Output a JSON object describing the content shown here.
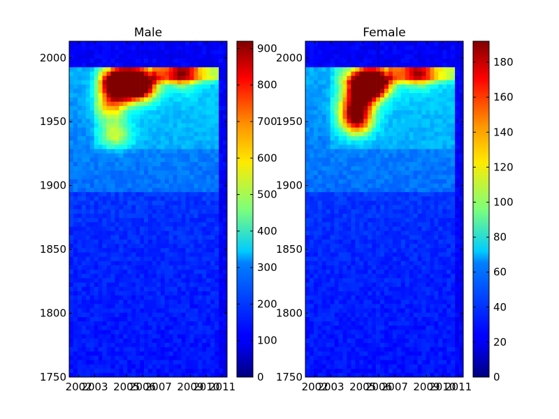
{
  "chart_data": [
    {
      "type": "heatmap",
      "title": "Male",
      "xlabel": "",
      "ylabel": "",
      "xlim": [
        2001.4,
        2011.3
      ],
      "ylim": [
        1750,
        2013
      ],
      "x_ticks": [
        2002,
        2003,
        2005,
        2006,
        2007,
        2009,
        2010,
        2011
      ],
      "x_tick_labels": [
        "2002",
        "2003",
        "2005",
        "2006",
        "2007",
        "2009",
        "2010",
        "2011"
      ],
      "y_ticks": [
        1750,
        1800,
        1850,
        1900,
        1950,
        2000
      ],
      "y_tick_labels": [
        "1750",
        "1800",
        "1850",
        "1900",
        "1950",
        "2000"
      ],
      "colorbar": {
        "min": 0,
        "max": 920,
        "colormap": "jet",
        "ticks": [
          0,
          100,
          200,
          300,
          400,
          500,
          600,
          700,
          800,
          900
        ],
        "tick_labels": [
          "0",
          "100",
          "200",
          "300",
          "400",
          "500",
          "600",
          "700",
          "800",
          "900"
        ]
      },
      "hotspots": [
        {
          "x": 2004.4,
          "y": 1979,
          "value": 900
        },
        {
          "x": 2005.2,
          "y": 1980,
          "value": 780
        },
        {
          "x": 2006.0,
          "y": 1978,
          "value": 600
        },
        {
          "x": 2004.0,
          "y": 1962,
          "value": 350
        },
        {
          "x": 2004.3,
          "y": 1940,
          "value": 280
        },
        {
          "x": 2008.5,
          "y": 1988,
          "value": 380
        }
      ],
      "grid": false
    },
    {
      "type": "heatmap",
      "title": "Female",
      "xlabel": "",
      "ylabel": "",
      "xlim": [
        2001.4,
        2011.3
      ],
      "ylim": [
        1750,
        2013
      ],
      "x_ticks": [
        2002,
        2003,
        2005,
        2006,
        2007,
        2009,
        2010,
        2011
      ],
      "x_tick_labels": [
        "2002",
        "2003",
        "2005",
        "2006",
        "2007",
        "2009",
        "2010",
        "2011"
      ],
      "y_ticks": [
        1750,
        1800,
        1850,
        1900,
        1950,
        2000
      ],
      "y_tick_labels": [
        "1750",
        "1800",
        "1850",
        "1900",
        "1950",
        "2000"
      ],
      "colorbar": {
        "min": 0,
        "max": 192,
        "colormap": "jet",
        "ticks": [
          0,
          20,
          40,
          60,
          80,
          100,
          120,
          140,
          160,
          180
        ],
        "tick_labels": [
          "0",
          "20",
          "40",
          "60",
          "80",
          "100",
          "120",
          "140",
          "160",
          "180"
        ]
      },
      "hotspots": [
        {
          "x": 2005.0,
          "y": 1978,
          "value": 190
        },
        {
          "x": 2005.8,
          "y": 1980,
          "value": 150
        },
        {
          "x": 2004.6,
          "y": 1962,
          "value": 120
        },
        {
          "x": 2004.6,
          "y": 1950,
          "value": 110
        },
        {
          "x": 2008.5,
          "y": 1988,
          "value": 70
        }
      ],
      "grid": false
    }
  ]
}
